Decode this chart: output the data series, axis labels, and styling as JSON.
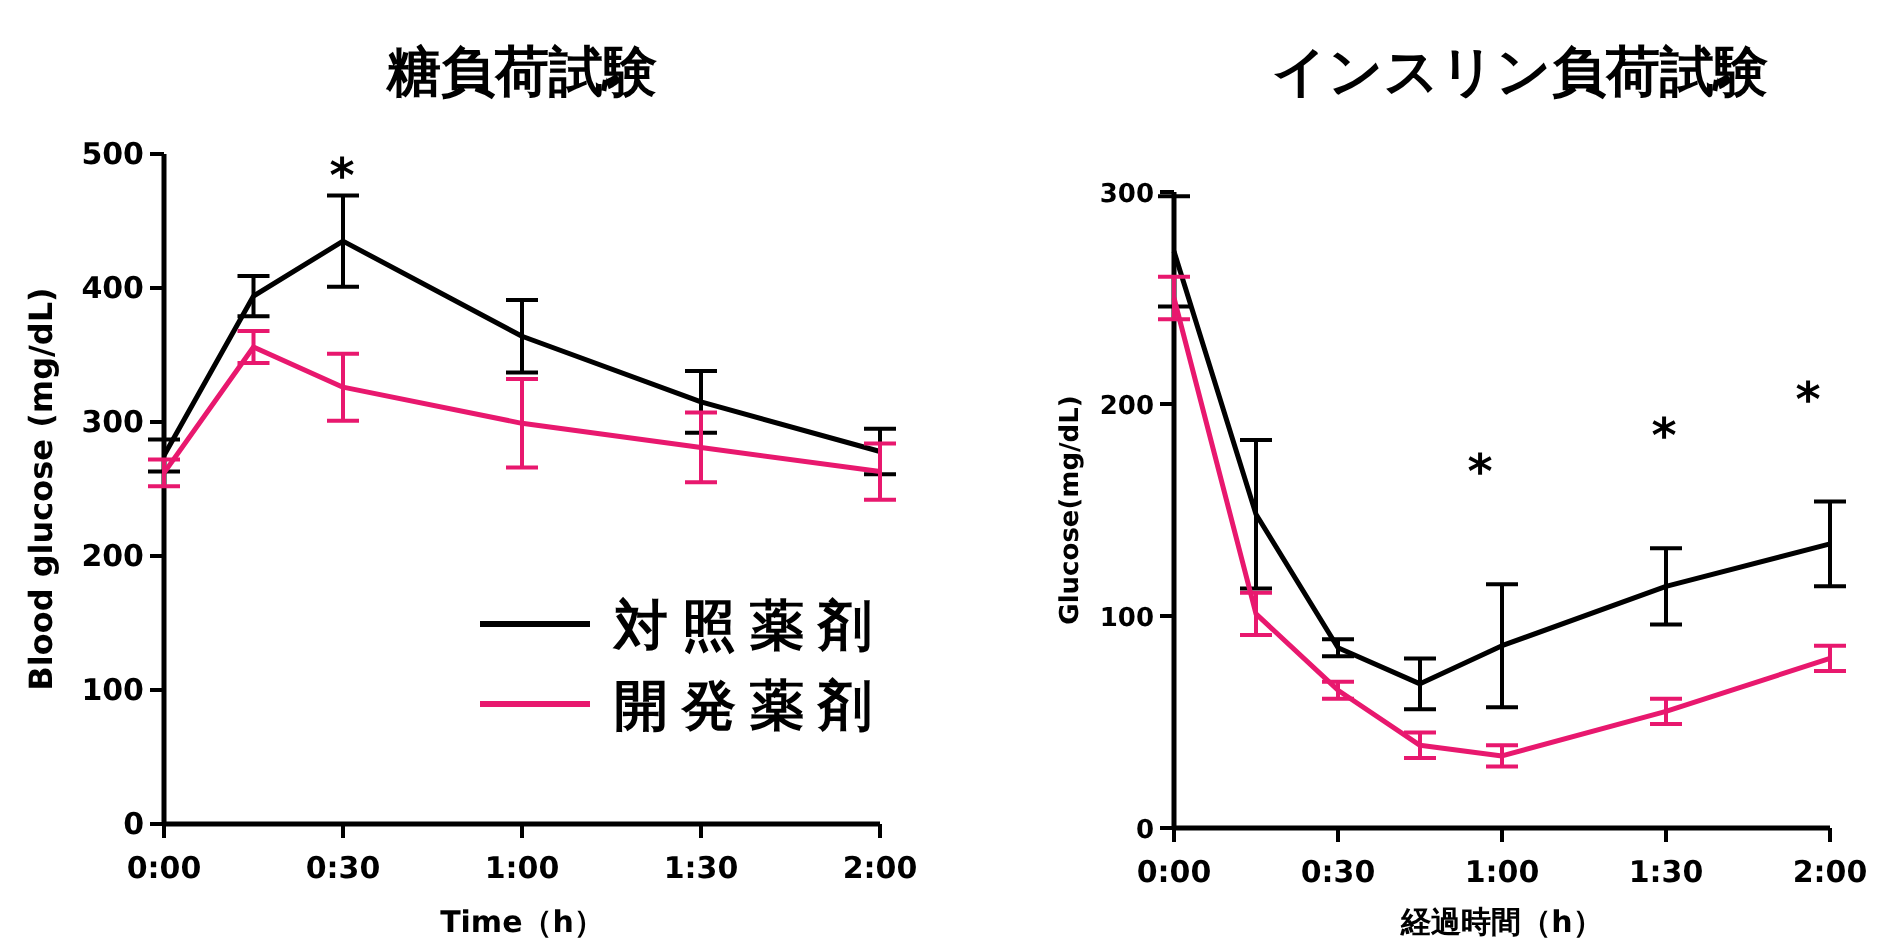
{
  "chart_data": [
    {
      "type": "line",
      "title": "糖負荷試験",
      "xlabel": "Time（h）",
      "ylabel": "Blood glucose (mg/dL)",
      "xlim": [
        0,
        2
      ],
      "ylim": [
        0,
        500
      ],
      "xticks": [
        {
          "value": 0,
          "label": "0:00"
        },
        {
          "value": 0.5,
          "label": "0:30"
        },
        {
          "value": 1,
          "label": "1:00"
        },
        {
          "value": 1.5,
          "label": "1:30"
        },
        {
          "value": 2,
          "label": "2:00"
        }
      ],
      "yticks": [
        0,
        100,
        200,
        300,
        400,
        500
      ],
      "legend": "bottom right",
      "grid": false,
      "line_style": "solid",
      "annotations": [
        "*"
      ],
      "series": [
        {
          "name": "対照薬剤",
          "color": "#000000",
          "x": [
            0,
            0.25,
            0.5,
            1,
            1.5,
            2
          ],
          "values": [
            275,
            394,
            435,
            364,
            315,
            278
          ],
          "errors": [
            12,
            15,
            34,
            27,
            23,
            17
          ]
        },
        {
          "name": "開発薬剤",
          "color": "#e8186e",
          "x": [
            0,
            0.25,
            0.5,
            1,
            1.5,
            2
          ],
          "values": [
            262,
            356,
            326,
            299,
            281,
            263
          ],
          "errors": [
            10,
            12,
            25,
            33,
            26,
            21
          ]
        }
      ]
    },
    {
      "type": "line",
      "title": "インスリン負荷試験",
      "xlabel": "経過時間（h）",
      "ylabel": "Glucose(mg/dL)",
      "xlim": [
        0,
        2
      ],
      "ylim": [
        0,
        300
      ],
      "xticks": [
        {
          "value": 0,
          "label": "0:00"
        },
        {
          "value": 0.5,
          "label": "0:30"
        },
        {
          "value": 1,
          "label": "1:00"
        },
        {
          "value": 1.5,
          "label": "1:30"
        },
        {
          "value": 2,
          "label": "2:00"
        }
      ],
      "yticks": [
        0,
        100,
        200,
        300
      ],
      "grid": false,
      "line_style": "solid",
      "annotations": [
        "*",
        "*",
        "*"
      ],
      "series": [
        {
          "color": "#000000",
          "x": [
            0,
            0.25,
            0.5,
            0.75,
            1,
            1.5,
            2
          ],
          "values": [
            272,
            148,
            85,
            68,
            86,
            114,
            134
          ],
          "errors": [
            26,
            35,
            4,
            12,
            29,
            18,
            20
          ]
        },
        {
          "color": "#e8186e",
          "x": [
            0,
            0.25,
            0.5,
            0.75,
            1,
            1.5,
            2
          ],
          "values": [
            250,
            101,
            65,
            39,
            34,
            55,
            80
          ],
          "errors": [
            10,
            10,
            4,
            6,
            5,
            6,
            6
          ]
        }
      ]
    }
  ]
}
